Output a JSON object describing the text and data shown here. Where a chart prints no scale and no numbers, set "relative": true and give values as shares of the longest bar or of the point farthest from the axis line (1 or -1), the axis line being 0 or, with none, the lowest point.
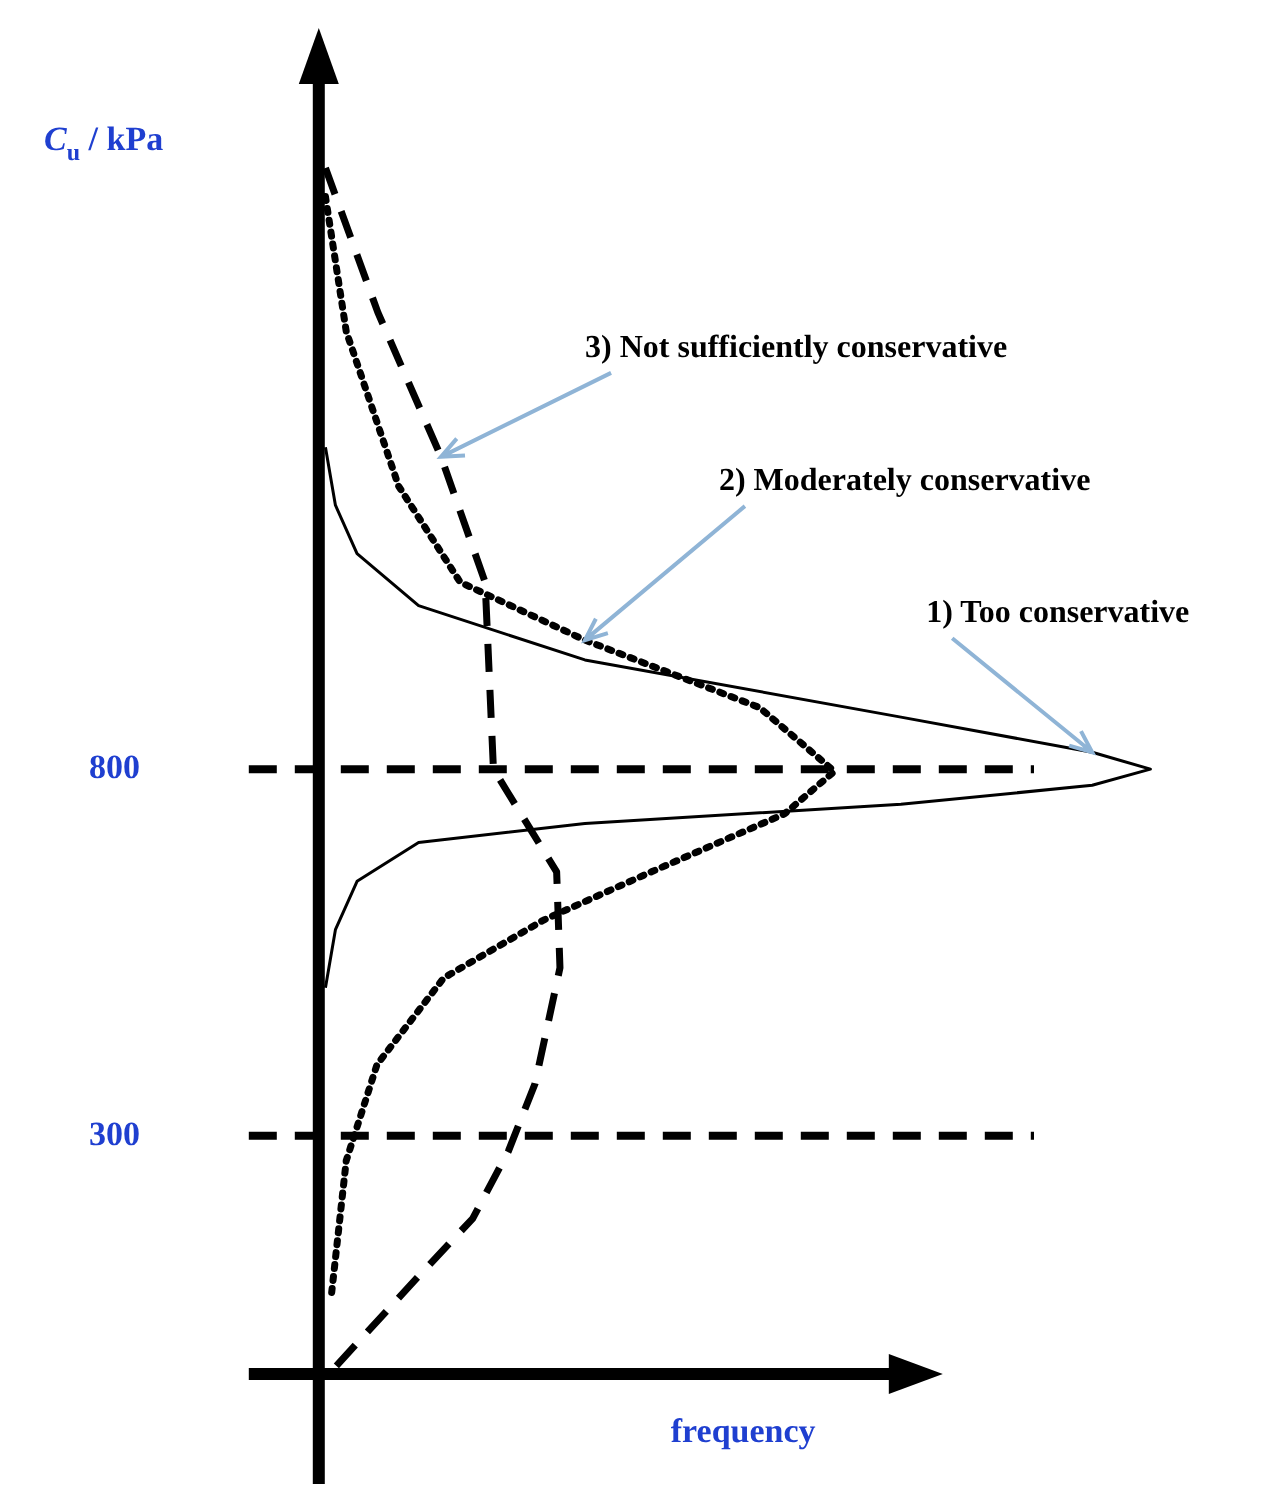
{
  "chart_data": {
    "type": "line",
    "orientation": "horizontal",
    "relative": true,
    "ylabel": "C$_{u}$ / kPa",
    "xlabel": "frequency",
    "ylim": [
      -25,
      1740
    ],
    "yticks": [
      300,
      800
    ],
    "grid": false,
    "legend": false,
    "marker": "none",
    "series": [
      {
        "color": "#000000",
        "line_style": "solid",
        "x": [
          1239,
          1160,
          1094,
          1023,
          949,
          871,
          823,
          800,
          778,
          752,
          726,
          700,
          647,
          581,
          502
        ],
        "values": [
          0.008,
          0.02,
          0.046,
          0.12,
          0.32,
          0.7,
          0.93,
          1,
          0.93,
          0.7,
          0.32,
          0.12,
          0.046,
          0.02,
          0.008
        ]
      },
      {
        "color": "#000000",
        "line_style": "dotted",
        "x": [
          1581,
          1397,
          1186,
          1055,
          976,
          884,
          797,
          739,
          660,
          594,
          515,
          397,
          266,
          81
        ],
        "values": [
          0.008,
          0.033,
          0.096,
          0.17,
          0.32,
          0.53,
          0.62,
          0.56,
          0.4,
          0.27,
          0.15,
          0.07,
          0.033,
          0.015
        ]
      },
      {
        "color": "#000000",
        "line_style": "dashed",
        "x": [
          1620,
          1423,
          1226,
          1055,
          800,
          660,
          529,
          371,
          279,
          187,
          95,
          -24
        ],
        "values": [
          0.008,
          0.071,
          0.147,
          0.2,
          0.21,
          0.286,
          0.29,
          0.26,
          0.228,
          0.185,
          0.109,
          0.013
        ]
      }
    ],
    "ref_lines": [
      {
        "axis": "y",
        "value": 800,
        "line_style": "dashed",
        "color": "#000000"
      },
      {
        "axis": "y",
        "value": 300,
        "line_style": "dashed",
        "color": "#000000"
      }
    ],
    "annotations": [
      {
        "text": "1) Too conservative",
        "x": 0.93,
        "y": 823
      },
      {
        "text": "2) Moderately conservative",
        "x": 0.32,
        "y": 976
      },
      {
        "text": "3) Not sufficiently conservative",
        "x": 0.147,
        "y": 1226
      }
    ]
  }
}
